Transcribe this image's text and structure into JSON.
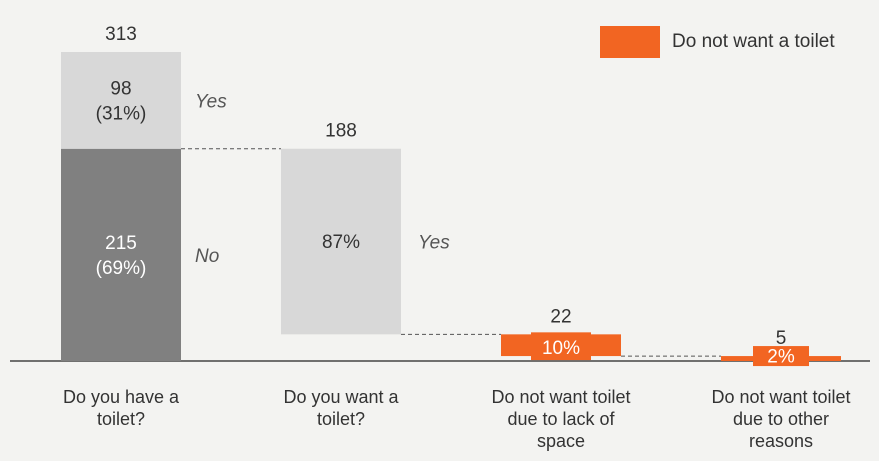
{
  "chart_data": {
    "type": "bar",
    "categories": [
      [
        "Do you have a",
        "toilet?"
      ],
      [
        "Do you want a",
        "toilet?"
      ],
      [
        "Do not want toilet",
        "due to lack of",
        "space"
      ],
      [
        "Do not want toilet",
        "due to other",
        "reasons"
      ]
    ],
    "values": [
      313,
      188,
      22,
      5
    ],
    "segments": [
      [
        {
          "value": 215,
          "label": [
            "215",
            "(69%)"
          ],
          "side_label": "No",
          "color": "#808080"
        },
        {
          "value": 98,
          "label": [
            "98",
            "(31%)"
          ],
          "side_label": "Yes",
          "color": "#d8d8d8"
        }
      ],
      [
        {
          "value": 188,
          "label": [
            "87%"
          ],
          "side_label": "Yes",
          "color": "#d8d8d8"
        }
      ],
      [
        {
          "value": 22,
          "label": [
            "10%"
          ],
          "side_label": "",
          "color": "#f26522"
        }
      ],
      [
        {
          "value": 5,
          "label": [
            "2%"
          ],
          "side_label": "",
          "color": "#f26522"
        }
      ]
    ],
    "legend": [
      {
        "name": "Do not want a toilet",
        "color": "#f26522"
      }
    ],
    "legend_position": "top-right",
    "ylim": [
      0,
      313
    ],
    "grid": false
  }
}
